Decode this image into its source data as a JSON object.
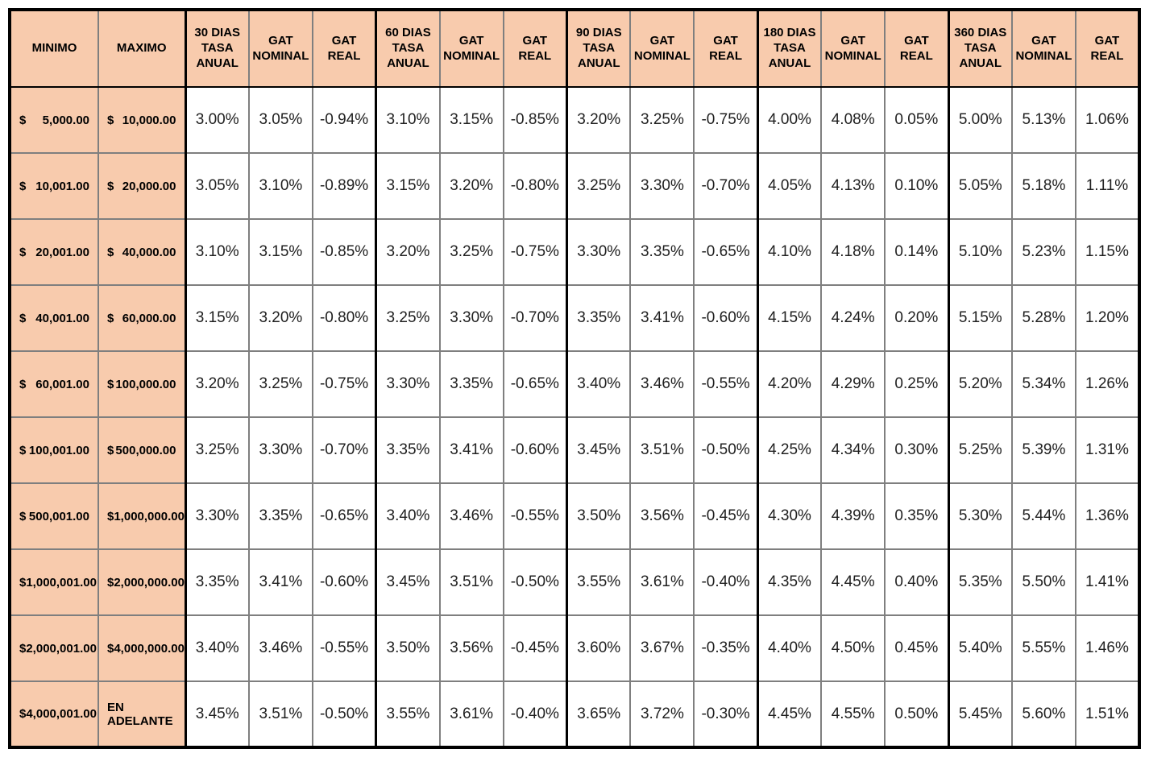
{
  "table": {
    "colors": {
      "header_bg": "#F8CBAD",
      "grid_line": "#7F7F7F",
      "group_border": "#000000"
    },
    "headers": [
      "MINIMO",
      "MAXIMO",
      "30 DIAS\nTASA\nANUAL",
      "GAT\nNOMINAL",
      "GAT REAL",
      "60 DIAS\nTASA\nANUAL",
      "GAT\nNOMINAL",
      "GAT REAL",
      "90 DIAS\nTASA\nANUAL",
      "GAT\nNOMINAL",
      "GAT REAL",
      "180 DIAS\nTASA\nANUAL",
      "GAT\nNOMINAL",
      "GAT REAL",
      "360 DIAS\nTASA\nANUAL",
      "GAT\nNOMINAL",
      "GAT REAL"
    ],
    "rows": [
      {
        "minimo": {
          "symbol": "$",
          "text": "5,000.00"
        },
        "maximo": {
          "symbol": "$",
          "text": "10,000.00"
        },
        "values": [
          "3.00%",
          "3.05%",
          "-0.94%",
          "3.10%",
          "3.15%",
          "-0.85%",
          "3.20%",
          "3.25%",
          "-0.75%",
          "4.00%",
          "4.08%",
          "0.05%",
          "5.00%",
          "5.13%",
          "1.06%"
        ]
      },
      {
        "minimo": {
          "symbol": "$",
          "text": "10,001.00"
        },
        "maximo": {
          "symbol": "$",
          "text": "20,000.00"
        },
        "values": [
          "3.05%",
          "3.10%",
          "-0.89%",
          "3.15%",
          "3.20%",
          "-0.80%",
          "3.25%",
          "3.30%",
          "-0.70%",
          "4.05%",
          "4.13%",
          "0.10%",
          "5.05%",
          "5.18%",
          "1.11%"
        ]
      },
      {
        "minimo": {
          "symbol": "$",
          "text": "20,001.00"
        },
        "maximo": {
          "symbol": "$",
          "text": "40,000.00"
        },
        "values": [
          "3.10%",
          "3.15%",
          "-0.85%",
          "3.20%",
          "3.25%",
          "-0.75%",
          "3.30%",
          "3.35%",
          "-0.65%",
          "4.10%",
          "4.18%",
          "0.14%",
          "5.10%",
          "5.23%",
          "1.15%"
        ]
      },
      {
        "minimo": {
          "symbol": "$",
          "text": "40,001.00"
        },
        "maximo": {
          "symbol": "$",
          "text": "60,000.00"
        },
        "values": [
          "3.15%",
          "3.20%",
          "-0.80%",
          "3.25%",
          "3.30%",
          "-0.70%",
          "3.35%",
          "3.41%",
          "-0.60%",
          "4.15%",
          "4.24%",
          "0.20%",
          "5.15%",
          "5.28%",
          "1.20%"
        ]
      },
      {
        "minimo": {
          "symbol": "$",
          "text": "60,001.00"
        },
        "maximo": {
          "symbol": "$",
          "text": "100,000.00"
        },
        "values": [
          "3.20%",
          "3.25%",
          "-0.75%",
          "3.30%",
          "3.35%",
          "-0.65%",
          "3.40%",
          "3.46%",
          "-0.55%",
          "4.20%",
          "4.29%",
          "0.25%",
          "5.20%",
          "5.34%",
          "1.26%"
        ]
      },
      {
        "minimo": {
          "symbol": "$",
          "text": "100,001.00"
        },
        "maximo": {
          "symbol": "$",
          "text": "500,000.00"
        },
        "values": [
          "3.25%",
          "3.30%",
          "-0.70%",
          "3.35%",
          "3.41%",
          "-0.60%",
          "3.45%",
          "3.51%",
          "-0.50%",
          "4.25%",
          "4.34%",
          "0.30%",
          "5.25%",
          "5.39%",
          "1.31%"
        ]
      },
      {
        "minimo": {
          "symbol": "$",
          "text": "500,001.00"
        },
        "maximo": {
          "symbol": "$",
          "text": "1,000,000.00"
        },
        "values": [
          "3.30%",
          "3.35%",
          "-0.65%",
          "3.40%",
          "3.46%",
          "-0.55%",
          "3.50%",
          "3.56%",
          "-0.45%",
          "4.30%",
          "4.39%",
          "0.35%",
          "5.30%",
          "5.44%",
          "1.36%"
        ]
      },
      {
        "minimo": {
          "symbol": "$",
          "text": "1,000,001.00"
        },
        "maximo": {
          "symbol": "$",
          "text": "2,000,000.00"
        },
        "values": [
          "3.35%",
          "3.41%",
          "-0.60%",
          "3.45%",
          "3.51%",
          "-0.50%",
          "3.55%",
          "3.61%",
          "-0.40%",
          "4.35%",
          "4.45%",
          "0.40%",
          "5.35%",
          "5.50%",
          "1.41%"
        ]
      },
      {
        "minimo": {
          "symbol": "$",
          "text": "2,000,001.00"
        },
        "maximo": {
          "symbol": "$",
          "text": "4,000,000.00"
        },
        "values": [
          "3.40%",
          "3.46%",
          "-0.55%",
          "3.50%",
          "3.56%",
          "-0.45%",
          "3.60%",
          "3.67%",
          "-0.35%",
          "4.40%",
          "4.50%",
          "0.45%",
          "5.40%",
          "5.55%",
          "1.46%"
        ]
      },
      {
        "minimo": {
          "symbol": "$",
          "text": "4,000,001.00"
        },
        "maximo": {
          "symbol": "",
          "text": "EN ADELANTE"
        },
        "values": [
          "3.45%",
          "3.51%",
          "-0.50%",
          "3.55%",
          "3.61%",
          "-0.40%",
          "3.65%",
          "3.72%",
          "-0.30%",
          "4.45%",
          "4.55%",
          "0.50%",
          "5.45%",
          "5.60%",
          "1.51%"
        ]
      }
    ]
  }
}
